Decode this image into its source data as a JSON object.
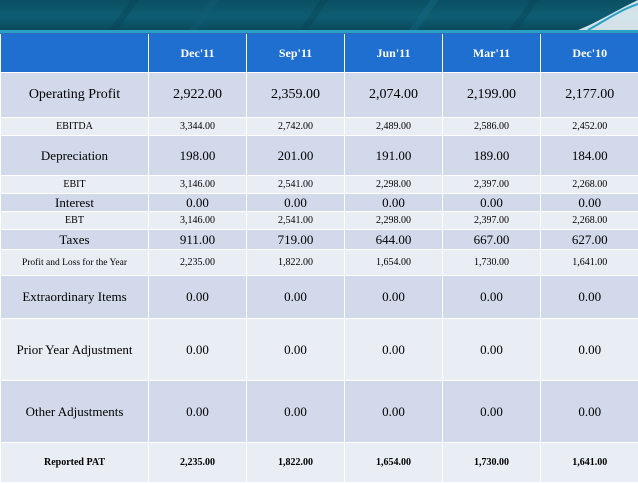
{
  "slide": {
    "colors": {
      "header_band": "#0e5d72",
      "accent_line": "#2b9fc4",
      "table_header": "#1f6fd1",
      "row_primary": "#d1d9ea",
      "row_alternate": "#e9edf4"
    }
  },
  "table": {
    "header": {
      "label": "",
      "periods": [
        "Dec'11",
        "Sep'11",
        "Jun'11",
        "Mar'11",
        "Dec'10"
      ]
    },
    "rows": [
      {
        "label": "Operating Profit",
        "values": [
          "2,922.00",
          "2,359.00",
          "2,074.00",
          "2,199.00",
          "2,177.00"
        ]
      },
      {
        "label": "EBITDA",
        "values": [
          "3,344.00",
          "2,742.00",
          "2,489.00",
          "2,586.00",
          "2,452.00"
        ]
      },
      {
        "label": "Depreciation",
        "values": [
          "198.00",
          "201.00",
          "191.00",
          "189.00",
          "184.00"
        ]
      },
      {
        "label": "EBIT",
        "values": [
          "3,146.00",
          "2,541.00",
          "2,298.00",
          "2,397.00",
          "2,268.00"
        ]
      },
      {
        "label": "Interest",
        "values": [
          "0.00",
          "0.00",
          "0.00",
          "0.00",
          "0.00"
        ]
      },
      {
        "label": "EBT",
        "values": [
          "3,146.00",
          "2,541.00",
          "2,298.00",
          "2,397.00",
          "2,268.00"
        ]
      },
      {
        "label": "Taxes",
        "values": [
          "911.00",
          "719.00",
          "644.00",
          "667.00",
          "627.00"
        ]
      },
      {
        "label": "Profit and Loss for the Year",
        "values": [
          "2,235.00",
          "1,822.00",
          "1,654.00",
          "1,730.00",
          "1,641.00"
        ]
      },
      {
        "label": "Extraordinary Items",
        "values": [
          "0.00",
          "0.00",
          "0.00",
          "0.00",
          "0.00"
        ]
      },
      {
        "label": "Prior Year Adjustment",
        "values": [
          "0.00",
          "0.00",
          "0.00",
          "0.00",
          "0.00"
        ]
      },
      {
        "label": "Other Adjustments",
        "values": [
          "0.00",
          "0.00",
          "0.00",
          "0.00",
          "0.00"
        ]
      },
      {
        "label": "Reported PAT",
        "values": [
          "2,235.00",
          "1,822.00",
          "1,654.00",
          "1,730.00",
          "1,641.00"
        ]
      }
    ]
  }
}
